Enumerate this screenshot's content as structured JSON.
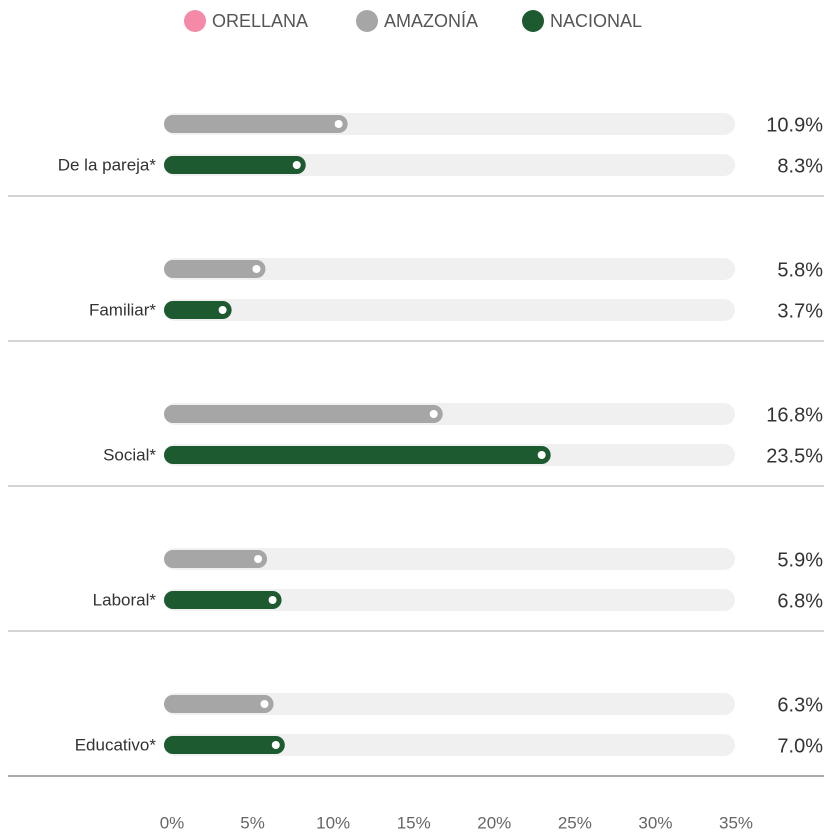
{
  "chart_data": {
    "type": "bar",
    "orientation": "horizontal",
    "categories": [
      "De la pareja*",
      "Familiar*",
      "Social*",
      "Laboral*",
      "Educativo*"
    ],
    "series": [
      {
        "name": "ORELLANA",
        "color": "#f48aa7",
        "values": [
          null,
          null,
          null,
          null,
          null
        ]
      },
      {
        "name": "AMAZONÍA",
        "color": "#a6a6a6",
        "values": [
          10.9,
          5.8,
          16.8,
          5.9,
          6.3
        ],
        "value_labels": [
          "10.9%",
          "5.8%",
          "16.8%",
          "5.9%",
          "6.3%"
        ]
      },
      {
        "name": "NACIONAL",
        "color": "#1e5a30",
        "values": [
          8.3,
          3.7,
          23.5,
          6.8,
          7.0
        ],
        "value_labels": [
          "8.3%",
          "3.7%",
          "23.5%",
          "6.8%",
          "7.0%"
        ]
      }
    ],
    "xlim": [
      0,
      35
    ],
    "xticks": [
      {
        "value": 0,
        "label": "0%"
      },
      {
        "value": 5,
        "label": "5%"
      },
      {
        "value": 10,
        "label": "10%"
      },
      {
        "value": 15,
        "label": "15%"
      },
      {
        "value": 20,
        "label": "20%"
      },
      {
        "value": 25,
        "label": "25%"
      },
      {
        "value": 30,
        "label": "30%"
      },
      {
        "value": 35,
        "label": "35%"
      }
    ],
    "legend": "top"
  }
}
